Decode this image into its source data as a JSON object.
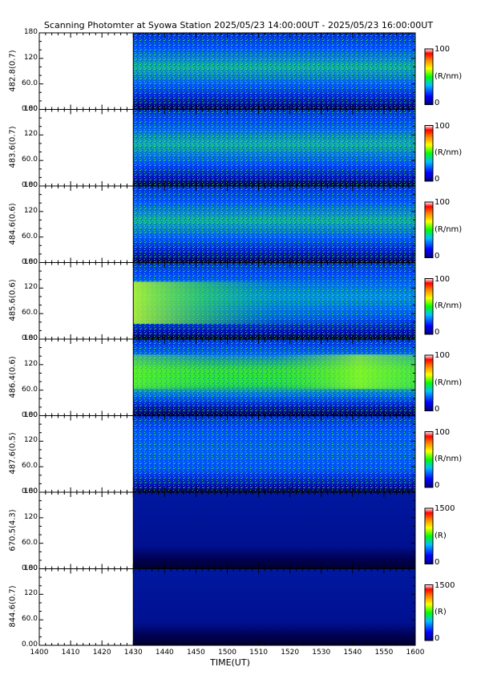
{
  "chart_data": {
    "type": "heatmap",
    "title": "Scanning Photomter at Syowa Station  2025/05/23 14:00:00UT - 2025/05/23 16:00:00UT",
    "xlabel": "TIME(UT)",
    "x_ticks": [
      "1400",
      "1410",
      "1420",
      "1430",
      "1440",
      "1450",
      "1500",
      "1510",
      "1520",
      "1530",
      "1540",
      "1550",
      "1600"
    ],
    "y_ticks": [
      "0.00",
      "60.0",
      "120",
      "180"
    ],
    "ylim": [
      0,
      180
    ],
    "data_start": "1430",
    "panels": [
      {
        "label": "482.8(0.7)",
        "cbar_max": "100",
        "cbar_min": "0",
        "unit": "(R/nm)",
        "level": 0.55,
        "profile": "broad"
      },
      {
        "label": "483.6(0.7)",
        "cbar_max": "100",
        "cbar_min": "0",
        "unit": "(R/nm)",
        "level": 0.5,
        "profile": "broad"
      },
      {
        "label": "484.6(0.6)",
        "cbar_max": "100",
        "cbar_min": "0",
        "unit": "(R/nm)",
        "level": 0.5,
        "profile": "broad"
      },
      {
        "label": "485.6(0.6)",
        "cbar_max": "100",
        "cbar_min": "0",
        "unit": "(R/nm)",
        "level": 0.55,
        "profile": "early"
      },
      {
        "label": "486.4(0.6)",
        "cbar_max": "100",
        "cbar_min": "0",
        "unit": "(R/nm)",
        "level": 0.7,
        "profile": "band"
      },
      {
        "label": "487.6(0.5)",
        "cbar_max": "100",
        "cbar_min": "0",
        "unit": "(R/nm)",
        "level": 0.35,
        "profile": "broad"
      },
      {
        "label": "670.5(4.3)",
        "cbar_max": "1500",
        "cbar_min": "0",
        "unit": "(R)",
        "level": 0.1,
        "profile": "dark"
      },
      {
        "label": "844.6(0.7)",
        "cbar_max": "1500",
        "cbar_min": "0",
        "unit": "(R)",
        "level": 0.1,
        "profile": "dark"
      }
    ]
  }
}
